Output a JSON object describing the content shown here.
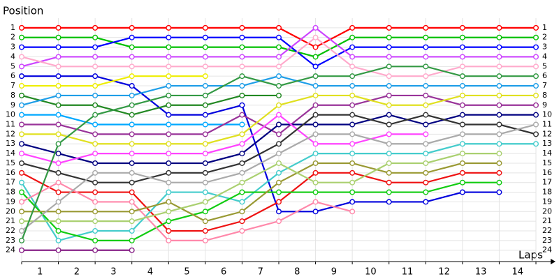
{
  "chart_data": {
    "type": "line",
    "y_label": "Position",
    "x_label": "Laps",
    "x": [
      0,
      1,
      2,
      3,
      4,
      5,
      6,
      7,
      8,
      9,
      10,
      11,
      12,
      13,
      14
    ],
    "xlim": [
      0,
      14
    ],
    "ylim": [
      0,
      25.1
    ],
    "y_inverted": true,
    "grid": true,
    "xticks": [
      {
        "value": 0.5,
        "label": "1"
      },
      {
        "value": 1.5,
        "label": "2"
      },
      {
        "value": 2.5,
        "label": "3"
      },
      {
        "value": 3.5,
        "label": "4"
      },
      {
        "value": 4.5,
        "label": "5"
      },
      {
        "value": 5.5,
        "label": "6"
      },
      {
        "value": 6.5,
        "label": "7"
      },
      {
        "value": 7.5,
        "label": "8"
      },
      {
        "value": 8.5,
        "label": "9"
      },
      {
        "value": 9.5,
        "label": "10"
      },
      {
        "value": 10.5,
        "label": "11"
      },
      {
        "value": 11.5,
        "label": "12"
      },
      {
        "value": 12.5,
        "label": "13"
      },
      {
        "value": 13.5,
        "label": "14"
      }
    ],
    "yticks": [
      1,
      2,
      3,
      4,
      5,
      6,
      7,
      8,
      9,
      10,
      11,
      12,
      13,
      14,
      15,
      16,
      17,
      18,
      19,
      20,
      21,
      22,
      23,
      24
    ],
    "series": [
      {
        "color": "#ff0000",
        "values": [
          1,
          1,
          1,
          1,
          1,
          1,
          1,
          1,
          3,
          1,
          1,
          1,
          1,
          1,
          1
        ]
      },
      {
        "color": "#00c000",
        "values": [
          2,
          2,
          2,
          3,
          3,
          3,
          3,
          3,
          4,
          2,
          2,
          2,
          2,
          2,
          2
        ]
      },
      {
        "color": "#0000ff",
        "values": [
          3,
          3,
          3,
          2,
          2,
          2,
          2,
          2,
          5,
          3,
          3,
          3,
          3,
          3,
          3
        ]
      },
      {
        "color": "#cc44ff",
        "values": [
          5,
          4,
          4,
          4,
          4,
          4,
          4,
          4,
          1,
          4,
          4,
          4,
          4,
          4,
          4
        ]
      },
      {
        "color": "#ffaacc",
        "values": [
          4,
          5,
          5,
          5,
          5,
          5,
          5,
          5,
          2,
          5,
          6,
          6,
          5,
          5,
          5
        ]
      },
      {
        "color": "#0000dd",
        "values": [
          6,
          6,
          6,
          7,
          10,
          10,
          9,
          20,
          20,
          19,
          19,
          19,
          18,
          18,
          null
        ]
      },
      {
        "color": "#eeee00",
        "values": [
          7,
          7,
          7,
          6,
          6,
          6,
          null,
          null,
          null,
          null,
          null,
          null,
          null,
          null,
          null
        ]
      },
      {
        "color": "#228822",
        "values": [
          8,
          9,
          9,
          10,
          9,
          9,
          8,
          8,
          null,
          null,
          null,
          null,
          null,
          null,
          null
        ]
      },
      {
        "color": "#1e9ee8",
        "values": [
          9,
          8,
          8,
          8,
          7,
          7,
          7,
          6,
          7,
          7,
          7,
          7,
          7,
          7,
          7
        ]
      },
      {
        "color": "#00a8ff",
        "values": [
          10,
          10,
          11,
          11,
          11,
          11,
          11,
          null,
          null,
          null,
          null,
          null,
          null,
          null,
          null
        ]
      },
      {
        "color": "#993399",
        "values": [
          11,
          11,
          12,
          12,
          12,
          12,
          10,
          12,
          9,
          9,
          8,
          8,
          9,
          9,
          9
        ]
      },
      {
        "color": "#e0e020",
        "values": [
          12,
          12,
          13,
          13,
          13,
          13,
          12,
          9,
          8,
          8,
          9,
          9,
          8,
          8,
          8
        ]
      },
      {
        "color": "#000080",
        "values": [
          13,
          14,
          15,
          15,
          15,
          15,
          14,
          11,
          11,
          11,
          10,
          11,
          10,
          10,
          10
        ]
      },
      {
        "color": "#ff44ff",
        "values": [
          14,
          15,
          14,
          14,
          14,
          14,
          13,
          10,
          13,
          13,
          12,
          12,
          null,
          null,
          null
        ]
      },
      {
        "color": "#333333",
        "values": [
          15,
          16,
          17,
          17,
          16,
          16,
          15,
          13,
          10,
          10,
          11,
          10,
          11,
          11,
          12
        ]
      },
      {
        "color": "#ee1111",
        "values": [
          16,
          18,
          18,
          18,
          22,
          22,
          21,
          19,
          16,
          16,
          17,
          17,
          16,
          16,
          null
        ]
      },
      {
        "color": "#44cccc",
        "values": [
          17,
          23,
          22,
          22,
          18,
          18,
          19,
          16,
          14,
          14,
          14,
          14,
          13,
          13,
          13
        ]
      },
      {
        "color": "#11cc11",
        "values": [
          18,
          22,
          23,
          23,
          21,
          20,
          18,
          18,
          18,
          18,
          18,
          18,
          17,
          17,
          null
        ]
      },
      {
        "color": "#ff88aa",
        "values": [
          19,
          17,
          19,
          19,
          23,
          23,
          22,
          21,
          19,
          20,
          null,
          null,
          null,
          null,
          null
        ]
      },
      {
        "color": "#999933",
        "values": [
          20,
          20,
          20,
          20,
          19,
          21,
          20,
          17,
          15,
          15,
          16,
          16,
          15,
          15,
          null
        ]
      },
      {
        "color": "#aad070",
        "values": [
          21,
          21,
          21,
          21,
          20,
          19,
          17,
          15,
          17,
          17,
          15,
          15,
          14,
          14,
          null
        ]
      },
      {
        "color": "#aaaaaa",
        "values": [
          22,
          19,
          16,
          16,
          17,
          17,
          16,
          14,
          12,
          12,
          13,
          13,
          12,
          12,
          11
        ]
      },
      {
        "color": "#339944",
        "values": [
          23,
          13,
          10,
          9,
          8,
          8,
          6,
          7,
          6,
          6,
          5,
          5,
          6,
          6,
          6
        ]
      },
      {
        "color": "#882288",
        "values": [
          24,
          24,
          24,
          24,
          null,
          null,
          null,
          null,
          null,
          null,
          null,
          null,
          null,
          null,
          null
        ]
      }
    ]
  }
}
